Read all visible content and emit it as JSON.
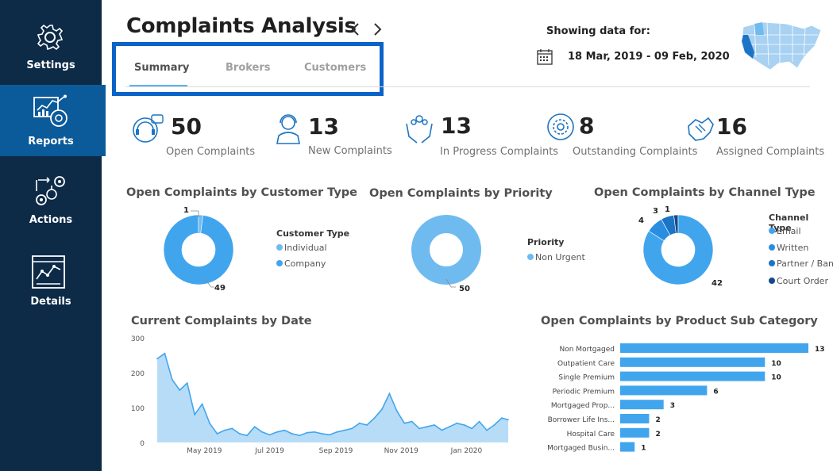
{
  "sidebar": {
    "items": [
      {
        "label": "Settings",
        "icon": "gear-icon"
      },
      {
        "label": "Reports",
        "icon": "report-icon",
        "active": true
      },
      {
        "label": "Actions",
        "icon": "actions-icon"
      },
      {
        "label": "Details",
        "icon": "details-icon"
      }
    ]
  },
  "header": {
    "title": "Complaints Analysis",
    "tabs": [
      {
        "label": "Summary",
        "active": true
      },
      {
        "label": "Brokers"
      },
      {
        "label": "Customers"
      }
    ],
    "showing_label": "Showing data for:",
    "date_range": "18 Mar, 2019 - 09 Feb, 2020"
  },
  "kpis": [
    {
      "value": "50",
      "label": "Open Complaints",
      "icon": "headset-agent-icon"
    },
    {
      "value": "13",
      "label": "New Complaints",
      "icon": "support-person-icon"
    },
    {
      "value": "13",
      "label": "In Progress Complaints",
      "icon": "hands-team-icon"
    },
    {
      "value": "8",
      "label": "Outstanding Complaints",
      "icon": "gear-circle-icon"
    },
    {
      "value": "16",
      "label": "Assigned Complaints",
      "icon": "handshake-icon"
    }
  ],
  "colors": {
    "sidebar": "#0d2a47",
    "active_nav": "#0b5a9a",
    "accent": "#41a5ee",
    "light_blue": "#6fbbf0",
    "dark_blue": "#1c74c4",
    "navy": "#134a8a",
    "highlight_box": "#0b63c7"
  },
  "chart_data": [
    {
      "type": "pie",
      "title": "Open Complaints by Customer Type",
      "legend_title": "Customer Type",
      "categories": [
        "Individual",
        "Company"
      ],
      "values": [
        1,
        49
      ],
      "data_labels": [
        "1",
        "49"
      ]
    },
    {
      "type": "pie",
      "title": "Open Complaints by Priority",
      "legend_title": "Priority",
      "categories": [
        "Non Urgent"
      ],
      "values": [
        50
      ],
      "data_labels": [
        "50"
      ]
    },
    {
      "type": "pie",
      "title": "Open Complaints by Channel Type",
      "legend_title": "Channel Type",
      "categories": [
        "Email",
        "Written",
        "Partner / Bank",
        "Court Order"
      ],
      "values": [
        42,
        4,
        3,
        1
      ],
      "data_labels": [
        "42",
        "4",
        "3",
        "1"
      ]
    },
    {
      "type": "area",
      "title": "Current Complaints by Date",
      "ylim": [
        0,
        300
      ],
      "yticks": [
        "300",
        "200",
        "100",
        "0"
      ],
      "xticks": [
        "May 2019",
        "Jul 2019",
        "Sep 2019",
        "Nov 2019",
        "Jan 2020"
      ],
      "x": [
        "2019-03-18",
        "2019-03-25",
        "2019-04-01",
        "2019-04-08",
        "2019-04-15",
        "2019-04-22",
        "2019-04-29",
        "2019-05-06",
        "2019-05-13",
        "2019-05-20",
        "2019-05-27",
        "2019-06-03",
        "2019-06-10",
        "2019-06-17",
        "2019-06-24",
        "2019-07-01",
        "2019-07-08",
        "2019-07-15",
        "2019-07-22",
        "2019-07-29",
        "2019-08-05",
        "2019-08-12",
        "2019-08-19",
        "2019-08-26",
        "2019-09-02",
        "2019-09-09",
        "2019-09-16",
        "2019-09-23",
        "2019-09-30",
        "2019-10-07",
        "2019-10-14",
        "2019-10-21",
        "2019-10-28",
        "2019-11-04",
        "2019-11-11",
        "2019-11-18",
        "2019-11-25",
        "2019-12-02",
        "2019-12-09",
        "2019-12-16",
        "2019-12-23",
        "2019-12-30",
        "2020-01-06",
        "2020-01-13",
        "2020-01-20",
        "2020-01-27",
        "2020-02-03",
        "2020-02-09"
      ],
      "values": [
        240,
        255,
        180,
        150,
        170,
        80,
        110,
        55,
        25,
        35,
        40,
        25,
        20,
        45,
        30,
        22,
        30,
        35,
        25,
        20,
        28,
        30,
        25,
        22,
        30,
        35,
        40,
        55,
        50,
        70,
        95,
        140,
        90,
        55,
        60,
        40,
        45,
        50,
        35,
        45,
        55,
        50,
        40,
        60,
        35,
        50,
        70,
        65
      ]
    },
    {
      "type": "bar",
      "orientation": "horizontal",
      "title": "Open Complaints by Product Sub Category",
      "categories": [
        "Non Mortgaged",
        "Outpatient Care",
        "Single Premium",
        "Periodic Premium",
        "Mortgaged Prop...",
        "Borrower Life Ins...",
        "Hospital Care",
        "Mortgaged Busin..."
      ],
      "values": [
        13,
        10,
        10,
        6,
        3,
        2,
        2,
        1
      ]
    }
  ]
}
